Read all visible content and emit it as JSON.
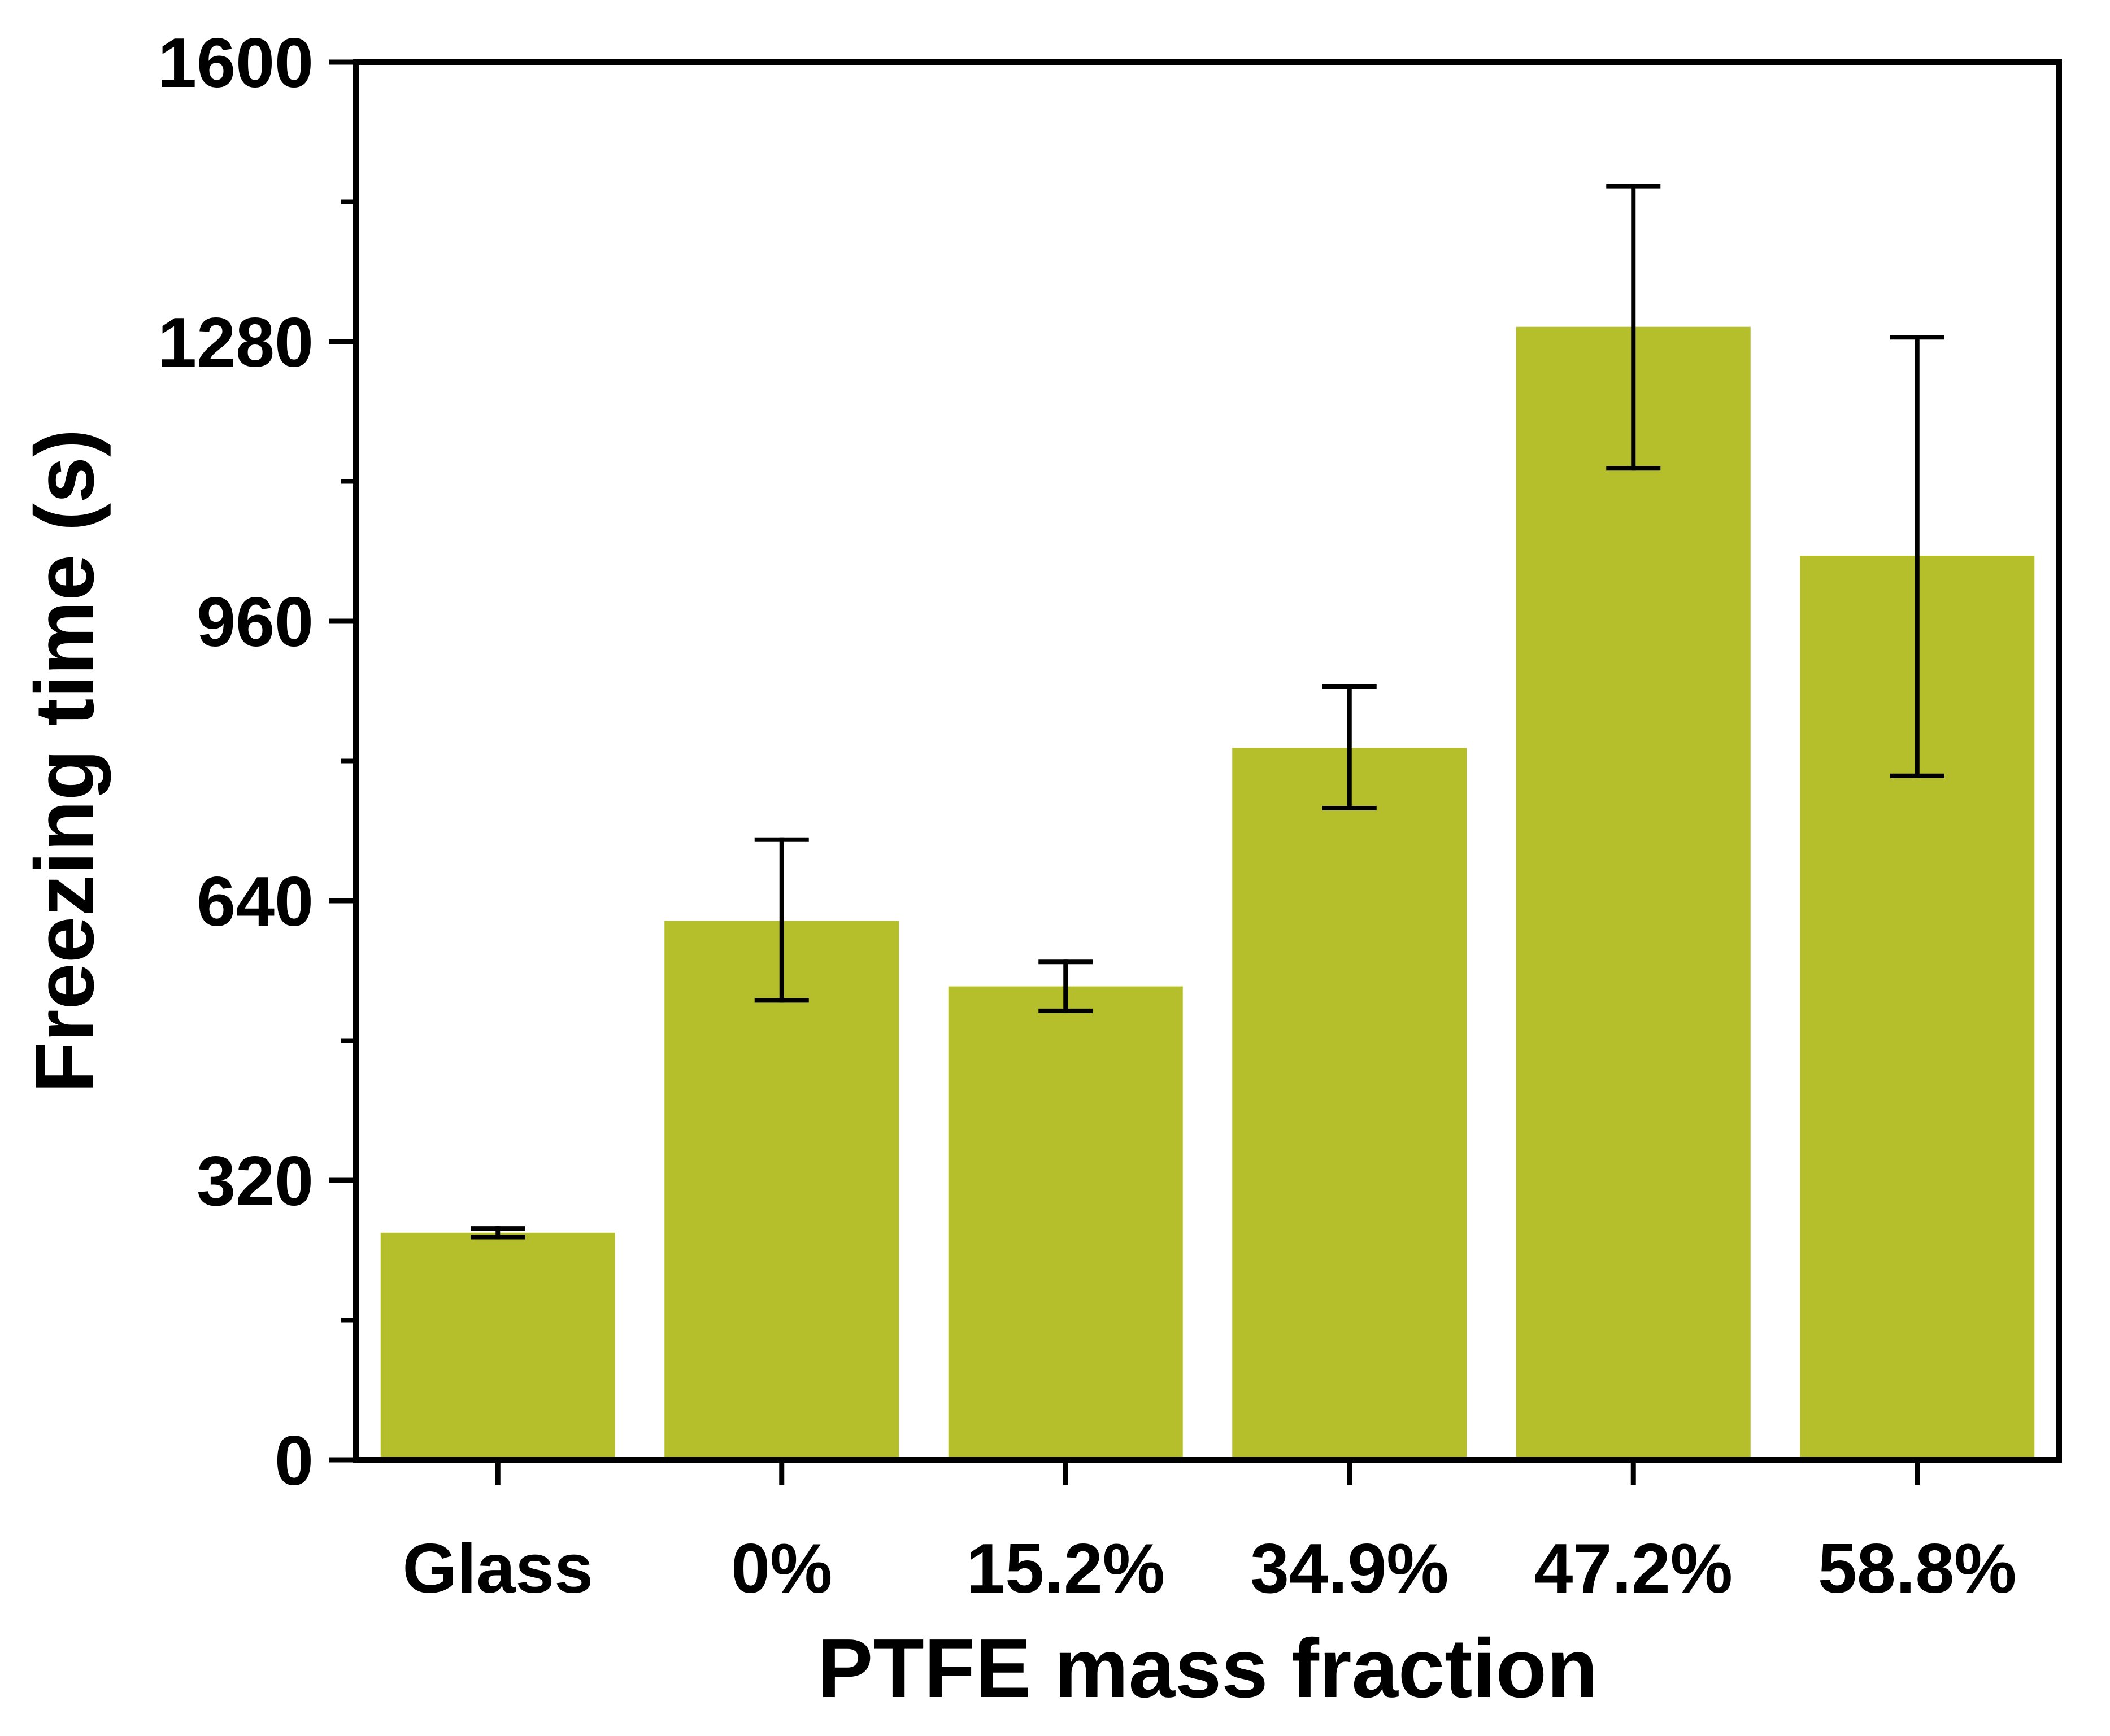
{
  "chart_data": {
    "type": "bar",
    "title": "",
    "xlabel": "PTFE mass fraction",
    "ylabel": "Freezing time (s)",
    "categories": [
      "Glass",
      "0%",
      "15.2%",
      "34.9%",
      "47.2%",
      "58.8%"
    ],
    "values": [
      260,
      617,
      542,
      815,
      1297,
      1035
    ],
    "error_low": [
      255,
      526,
      514,
      746,
      1135,
      783
    ],
    "error_high": [
      265,
      710,
      570,
      885,
      1458,
      1285
    ],
    "ylim": [
      0,
      1600
    ],
    "yticks": [
      "0",
      "320",
      "640",
      "960",
      "1280",
      "1600"
    ],
    "ytick_values": [
      0,
      320,
      640,
      960,
      1280,
      1600
    ],
    "bar_color": "#b5bf2c",
    "errorbar_color": "#000000",
    "axis_color": "#000000",
    "grid": false,
    "legend": "none"
  }
}
